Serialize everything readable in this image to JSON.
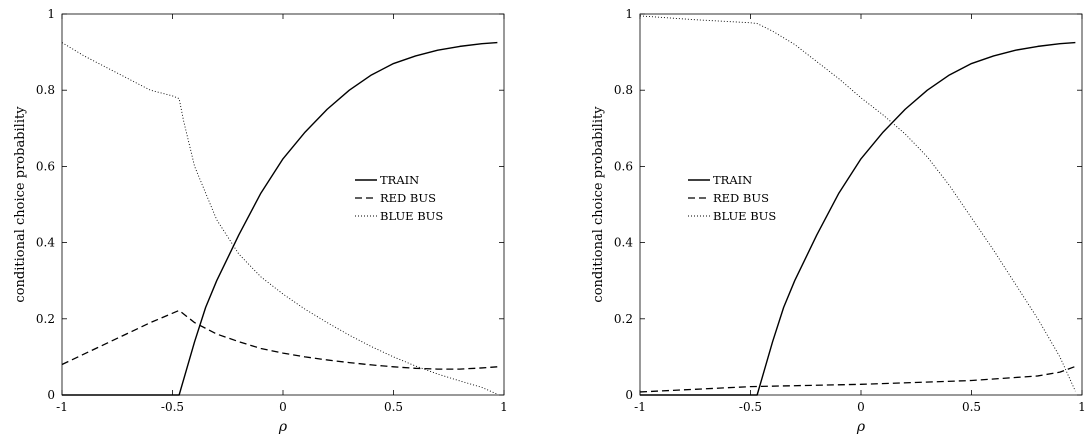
{
  "chart_data": [
    {
      "type": "line",
      "xlabel": "ρ",
      "ylabel": "conditional choice probability",
      "xlim": [
        -1,
        1
      ],
      "ylim": [
        0,
        1
      ],
      "xticks": [
        -1,
        -0.5,
        0,
        0.5,
        1
      ],
      "yticks": [
        0,
        0.2,
        0.4,
        0.6,
        0.8,
        1
      ],
      "xtick_labels": [
        "-1",
        "-0.5",
        "0",
        "0.5",
        "1"
      ],
      "ytick_labels": [
        "0",
        "0.2",
        "0.4",
        "0.6",
        "0.8",
        "1"
      ],
      "grid": false,
      "legend": "center-right",
      "series": [
        {
          "name": "TRAIN",
          "style": "solid",
          "x": [
            -1,
            -0.5,
            -0.47,
            -0.45,
            -0.4,
            -0.35,
            -0.3,
            -0.2,
            -0.1,
            0,
            0.1,
            0.2,
            0.3,
            0.4,
            0.5,
            0.6,
            0.7,
            0.8,
            0.9,
            0.97
          ],
          "y": [
            0,
            0,
            0,
            0.04,
            0.14,
            0.23,
            0.3,
            0.42,
            0.53,
            0.62,
            0.69,
            0.75,
            0.8,
            0.84,
            0.87,
            0.89,
            0.905,
            0.915,
            0.922,
            0.925
          ]
        },
        {
          "name": "RED BUS",
          "style": "dashed",
          "x": [
            -1,
            -0.8,
            -0.6,
            -0.47,
            -0.4,
            -0.3,
            -0.2,
            -0.1,
            0,
            0.1,
            0.2,
            0.3,
            0.4,
            0.5,
            0.6,
            0.7,
            0.8,
            0.9,
            0.97
          ],
          "y": [
            0.08,
            0.135,
            0.19,
            0.222,
            0.19,
            0.16,
            0.14,
            0.122,
            0.11,
            0.1,
            0.092,
            0.085,
            0.079,
            0.074,
            0.07,
            0.068,
            0.068,
            0.071,
            0.074
          ]
        },
        {
          "name": "BLUE BUS",
          "style": "dotted",
          "x": [
            -1,
            -0.9,
            -0.8,
            -0.7,
            -0.6,
            -0.5,
            -0.47,
            -0.45,
            -0.4,
            -0.3,
            -0.2,
            -0.1,
            0,
            0.1,
            0.2,
            0.3,
            0.4,
            0.5,
            0.6,
            0.7,
            0.8,
            0.9,
            0.97
          ],
          "y": [
            0.925,
            0.89,
            0.86,
            0.83,
            0.8,
            0.785,
            0.778,
            0.72,
            0.6,
            0.46,
            0.37,
            0.31,
            0.265,
            0.225,
            0.19,
            0.157,
            0.127,
            0.1,
            0.076,
            0.055,
            0.037,
            0.02,
            0.002
          ]
        }
      ]
    },
    {
      "type": "line",
      "xlabel": "ρ",
      "ylabel": "conditional choice probability",
      "xlim": [
        -1,
        1
      ],
      "ylim": [
        0,
        1
      ],
      "xticks": [
        -1,
        -0.5,
        0,
        0.5,
        1
      ],
      "yticks": [
        0,
        0.2,
        0.4,
        0.6,
        0.8,
        1
      ],
      "xtick_labels": [
        "-1",
        "-0.5",
        "0",
        "0.5",
        "1"
      ],
      "ytick_labels": [
        "0",
        "0.2",
        "0.4",
        "0.6",
        "0.8",
        "1"
      ],
      "grid": false,
      "legend": "center-left",
      "series": [
        {
          "name": "TRAIN",
          "style": "solid",
          "x": [
            -1,
            -0.5,
            -0.47,
            -0.45,
            -0.4,
            -0.35,
            -0.3,
            -0.2,
            -0.1,
            0,
            0.1,
            0.2,
            0.3,
            0.4,
            0.5,
            0.6,
            0.7,
            0.8,
            0.9,
            0.97
          ],
          "y": [
            0,
            0,
            0,
            0.04,
            0.14,
            0.23,
            0.3,
            0.42,
            0.53,
            0.62,
            0.69,
            0.75,
            0.8,
            0.84,
            0.87,
            0.89,
            0.905,
            0.915,
            0.922,
            0.925
          ]
        },
        {
          "name": "RED BUS",
          "style": "dashed",
          "x": [
            -1,
            -0.5,
            0,
            0.5,
            0.8,
            0.9,
            0.97
          ],
          "y": [
            0.008,
            0.022,
            0.028,
            0.038,
            0.05,
            0.06,
            0.075
          ]
        },
        {
          "name": "BLUE BUS",
          "style": "dotted",
          "x": [
            -1,
            -0.75,
            -0.5,
            -0.47,
            -0.4,
            -0.3,
            -0.2,
            -0.1,
            0,
            0.1,
            0.2,
            0.3,
            0.4,
            0.5,
            0.6,
            0.7,
            0.8,
            0.9,
            0.97
          ],
          "y": [
            0.995,
            0.985,
            0.977,
            0.975,
            0.955,
            0.92,
            0.875,
            0.83,
            0.78,
            0.735,
            0.685,
            0.625,
            0.55,
            0.465,
            0.38,
            0.29,
            0.2,
            0.1,
            0.01
          ]
        }
      ]
    }
  ]
}
